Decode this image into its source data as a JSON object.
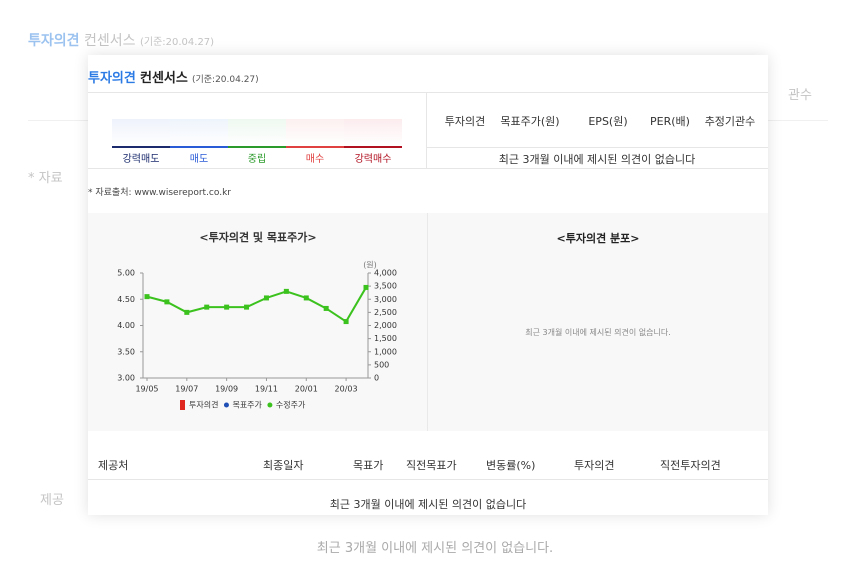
{
  "background": {
    "title_highlight": "투자의견",
    "title": "컨센서스",
    "date": "(기준:20.04.27)",
    "right_fragment": "관수",
    "source_fragment": "* 자료",
    "provider_fragment": "제공",
    "empty_message": "최근 3개월 이내에 제시된 의견이 없습니다."
  },
  "popup": {
    "title_highlight": "투자의견",
    "title": "컨센서스",
    "date": "(기준:20.04.27)",
    "scale": [
      "강력매도",
      "매도",
      "중립",
      "매수",
      "강력매수"
    ],
    "summary_table": {
      "columns": [
        "투자의견",
        "목표주가(원)",
        "EPS(원)",
        "PER(배)",
        "추정기관수"
      ],
      "empty_message": "최근 3개월 이내에 제시된 의견이 없습니다"
    },
    "source": "* 자료출처: www.wisereport.co.kr",
    "distribution": {
      "title": "<투자의견 분포>",
      "empty_message": "최근 3개월 이내에 제시된 의견이 없습니다."
    },
    "detail_table": {
      "columns": [
        "제공처",
        "최종일자",
        "목표가",
        "직전목표가",
        "변동률(%)",
        "투자의견",
        "직전투자의견"
      ],
      "empty_message": "최근 3개월 이내에 제시된 의견이 없습니다"
    }
  },
  "chart_data": {
    "type": "line",
    "title": "<투자의견 및 목표주가>",
    "y2_label": "(원)",
    "categories": [
      "19/05",
      null,
      "19/07",
      null,
      "19/09",
      null,
      "19/11",
      null,
      "20/01",
      null,
      "20/03",
      null
    ],
    "ylim": [
      3,
      5
    ],
    "yticks": [
      {
        "value": 3,
        "label": "3.00"
      },
      {
        "value": 3.5,
        "label": "3.50"
      },
      {
        "value": 4,
        "label": "4.00"
      },
      {
        "value": 4.5,
        "label": "4.50"
      },
      {
        "value": 5,
        "label": "5.00"
      }
    ],
    "y2lim": [
      0,
      4000
    ],
    "y2ticks": [
      0,
      500,
      {
        "value": 1000,
        "label": "1,000"
      },
      {
        "value": 1500,
        "label": "1,500"
      },
      {
        "value": 2000,
        "label": "2,000"
      },
      {
        "value": 2500,
        "label": "2,500"
      },
      {
        "value": 3000,
        "label": "3,000"
      },
      {
        "value": 3500,
        "label": "3,500"
      },
      {
        "value": 4000,
        "label": "4,000"
      }
    ],
    "series": [
      {
        "name": "투자의견",
        "color": "#e0271f",
        "marker": "square",
        "values": [
          null,
          null,
          null,
          null,
          null,
          null,
          null,
          null,
          null,
          null,
          null,
          null
        ]
      },
      {
        "name": "목표주가",
        "color": "#1f4fb5",
        "marker": "circle",
        "values": [
          null,
          null,
          null,
          null,
          null,
          null,
          null,
          null,
          null,
          null,
          null,
          null
        ]
      },
      {
        "name": "수정주가",
        "color": "#3cc21e",
        "marker": "circle",
        "axis": "y2",
        "values": [
          3100,
          2900,
          2500,
          2700,
          2700,
          2700,
          3050,
          3300,
          3050,
          2650,
          2150,
          3450
        ]
      }
    ]
  }
}
